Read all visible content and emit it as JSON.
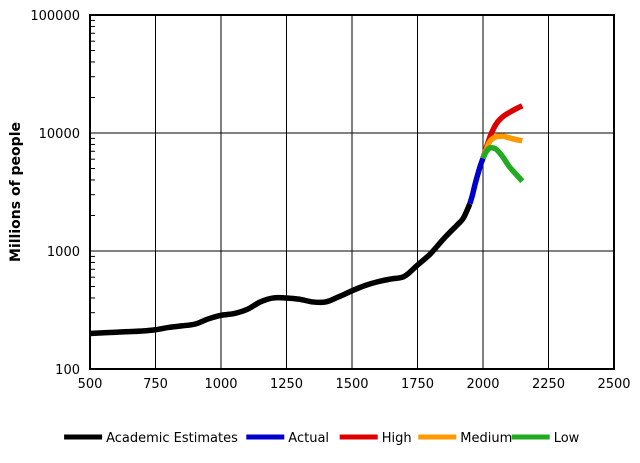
{
  "chart_data": {
    "type": "line",
    "title": "",
    "xlabel": "",
    "ylabel": "Millions of people",
    "xlim": [
      500,
      2500
    ],
    "ylim": [
      100,
      100000
    ],
    "y_scale": "log",
    "grid": true,
    "legend_position": "bottom",
    "x_ticks": [
      "500",
      "750",
      "1000",
      "1250",
      "1500",
      "1750",
      "2000",
      "2250",
      "2500"
    ],
    "y_ticks": [
      "100",
      "1000",
      "10000",
      "100000"
    ],
    "series": [
      {
        "name": "Academic Estimates",
        "color": "#000000",
        "x": [
          500,
          600,
          700,
          750,
          800,
          850,
          900,
          950,
          1000,
          1050,
          1100,
          1150,
          1200,
          1250,
          1300,
          1350,
          1400,
          1450,
          1500,
          1550,
          1600,
          1650,
          1700,
          1750,
          1800,
          1850,
          1900,
          1925,
          1950
        ],
        "y": [
          200,
          205,
          210,
          215,
          225,
          232,
          240,
          265,
          285,
          295,
          320,
          370,
          400,
          400,
          390,
          370,
          370,
          410,
          460,
          510,
          550,
          580,
          610,
          760,
          950,
          1270,
          1650,
          1900,
          2520
        ]
      },
      {
        "name": "Actual",
        "color": "#0000cc",
        "x": [
          1950,
          1960,
          1970,
          1980,
          1990,
          2000
        ],
        "y": [
          2520,
          3000,
          3700,
          4450,
          5300,
          6100
        ]
      },
      {
        "name": "High",
        "color": "#dd0000",
        "x": [
          2000,
          2010,
          2020,
          2030,
          2050,
          2075,
          2100,
          2125,
          2150
        ],
        "y": [
          6100,
          7200,
          8400,
          9700,
          11900,
          13700,
          14900,
          16000,
          17000
        ]
      },
      {
        "name": "Medium",
        "color": "#ff9900",
        "x": [
          2000,
          2010,
          2020,
          2030,
          2050,
          2075,
          2100,
          2125,
          2150
        ],
        "y": [
          6100,
          7000,
          8000,
          8700,
          9300,
          9400,
          9100,
          8800,
          8600
        ]
      },
      {
        "name": "Low",
        "color": "#22aa22",
        "x": [
          2000,
          2010,
          2020,
          2030,
          2050,
          2075,
          2100,
          2125,
          2150
        ],
        "y": [
          6100,
          6800,
          7300,
          7500,
          7300,
          6300,
          5200,
          4500,
          3900
        ]
      }
    ]
  }
}
